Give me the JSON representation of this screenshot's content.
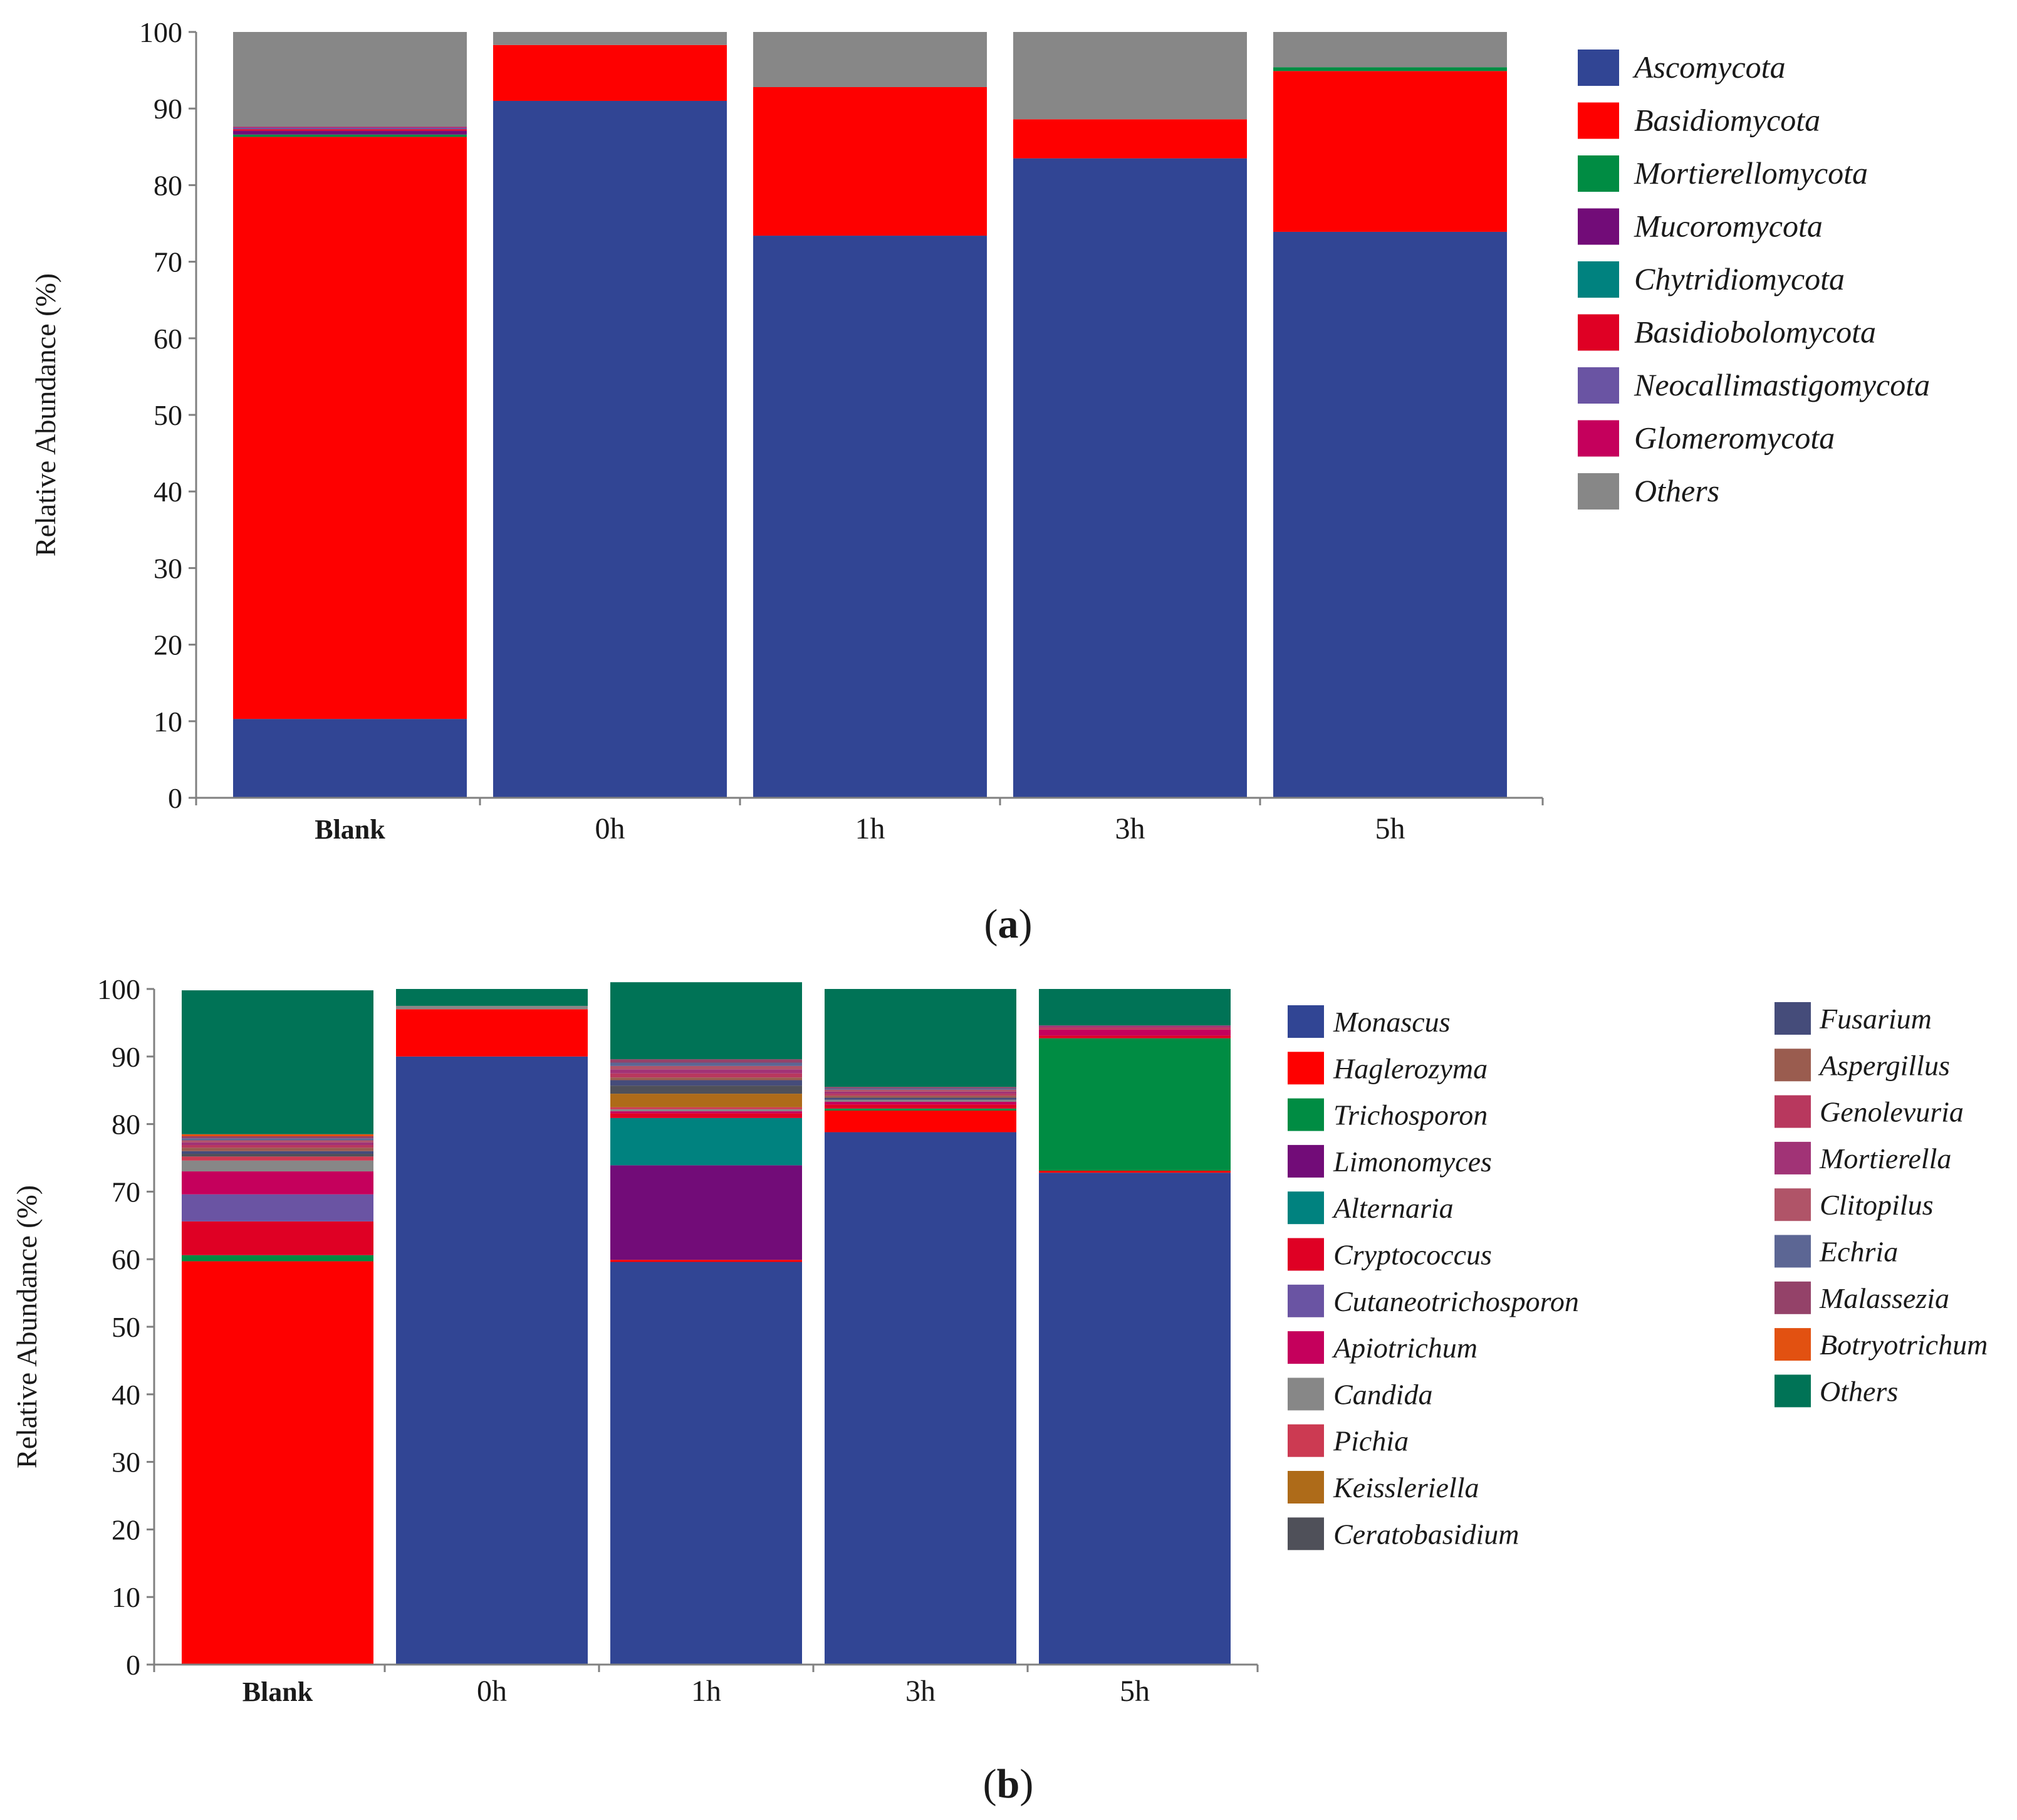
{
  "chart_data": [
    {
      "type": "bar",
      "stacked": true,
      "panel_label": "a",
      "ylabel": "Relative Abundance (%)",
      "xlabel": "",
      "ylim": [
        0,
        100
      ],
      "yticks": [
        0,
        10,
        20,
        30,
        40,
        50,
        60,
        70,
        80,
        90,
        100
      ],
      "categories": [
        "Blank",
        "0h",
        "1h",
        "3h",
        "5h"
      ],
      "legend_position": "right",
      "series": [
        {
          "name": "Ascomycota",
          "color": "#314594",
          "values": [
            10.3,
            91.0,
            73.4,
            83.5,
            73.9
          ]
        },
        {
          "name": "Basidiomycota",
          "color": "#fe0000",
          "values": [
            76.0,
            7.3,
            19.4,
            5.1,
            21.0
          ]
        },
        {
          "name": "Mortierellomycota",
          "color": "#008c43",
          "values": [
            0.3,
            0.0,
            0.0,
            0.0,
            0.5
          ]
        },
        {
          "name": "Mucoromycota",
          "color": "#720c78",
          "values": [
            0.5,
            0.0,
            0.0,
            0.0,
            0.0
          ]
        },
        {
          "name": "Chytridiomycota",
          "color": "#00827f",
          "values": [
            0.0,
            0.0,
            0.0,
            0.0,
            0.0
          ]
        },
        {
          "name": "Basidiobolomycota",
          "color": "#df0024",
          "values": [
            0.2,
            0.0,
            0.0,
            0.0,
            0.0
          ]
        },
        {
          "name": "Neocallimastigomycota",
          "color": "#6a54a3",
          "values": [
            0.2,
            0.0,
            0.0,
            0.0,
            0.0
          ]
        },
        {
          "name": "Glomeromycota",
          "color": "#c5005c",
          "values": [
            0.1,
            0.0,
            0.0,
            0.0,
            0.0
          ]
        },
        {
          "name": "Others",
          "color": "#878787",
          "values": [
            12.4,
            1.7,
            7.2,
            11.4,
            4.6
          ]
        }
      ]
    },
    {
      "type": "bar",
      "stacked": true,
      "panel_label": "b",
      "ylabel": "Relative Abundance (%)",
      "xlabel": "",
      "ylim": [
        0,
        100
      ],
      "yticks": [
        0,
        10,
        20,
        30,
        40,
        50,
        60,
        70,
        80,
        90,
        100
      ],
      "categories": [
        "Blank",
        "0h",
        "1h",
        "3h",
        "5h"
      ],
      "legend_position": "right",
      "series": [
        {
          "name": "Monascus",
          "color": "#314594",
          "values": [
            0.0,
            90.0,
            59.6,
            78.8,
            72.8
          ]
        },
        {
          "name": "Haglerozyma",
          "color": "#fe0000",
          "values": [
            59.7,
            7.0,
            0.3,
            3.2,
            0.3
          ]
        },
        {
          "name": "Trichosporon",
          "color": "#008c43",
          "values": [
            0.9,
            0.0,
            0.0,
            0.3,
            19.6
          ]
        },
        {
          "name": "Limonomyces",
          "color": "#720c78",
          "values": [
            0.0,
            0.0,
            14.0,
            0.0,
            0.0
          ]
        },
        {
          "name": "Alternaria",
          "color": "#00827f",
          "values": [
            0.0,
            0.0,
            7.0,
            0.0,
            0.0
          ]
        },
        {
          "name": "Cryptococcus",
          "color": "#df0024",
          "values": [
            5.0,
            0.0,
            0.7,
            0.6,
            0.4
          ]
        },
        {
          "name": "Cutaneotrichosporon",
          "color": "#6a54a3",
          "values": [
            4.0,
            0.0,
            0.0,
            0.0,
            0.0
          ]
        },
        {
          "name": "Apiotrichum",
          "color": "#c5005c",
          "values": [
            3.4,
            0.0,
            0.3,
            0.4,
            0.9
          ]
        },
        {
          "name": "Candida",
          "color": "#878787",
          "values": [
            1.6,
            0.5,
            0.3,
            0.3,
            0.0
          ]
        },
        {
          "name": "Pichia",
          "color": "#cc3a52",
          "values": [
            0.6,
            0.0,
            0.3,
            0.0,
            0.0
          ]
        },
        {
          "name": "Keissleriella",
          "color": "#ae6b19",
          "values": [
            0.0,
            0.0,
            2.0,
            0.0,
            0.0
          ]
        },
        {
          "name": "Ceratobasidium",
          "color": "#4f5059",
          "values": [
            0.4,
            0.0,
            1.2,
            0.0,
            0.0
          ]
        },
        {
          "name": "Fusarium",
          "color": "#454c7a",
          "values": [
            0.4,
            0.0,
            0.8,
            0.3,
            0.0
          ]
        },
        {
          "name": "Aspergillus",
          "color": "#9a5c4f",
          "values": [
            0.5,
            0.0,
            0.4,
            0.3,
            0.0
          ]
        },
        {
          "name": "Genolevuria",
          "color": "#b8385e",
          "values": [
            0.4,
            0.0,
            0.6,
            0.3,
            0.3
          ]
        },
        {
          "name": "Mortierella",
          "color": "#a13376",
          "values": [
            0.4,
            0.0,
            0.6,
            0.3,
            0.3
          ]
        },
        {
          "name": "Clitopilus",
          "color": "#b05468",
          "values": [
            0.3,
            0.0,
            0.5,
            0.3,
            0.0
          ]
        },
        {
          "name": "Echria",
          "color": "#5c6694",
          "values": [
            0.3,
            0.0,
            0.5,
            0.2,
            0.0
          ]
        },
        {
          "name": "Malassezia",
          "color": "#944269",
          "values": [
            0.3,
            0.0,
            0.5,
            0.2,
            0.0
          ]
        },
        {
          "name": "Botryotrichum",
          "color": "#e25111",
          "values": [
            0.3,
            0.0,
            0.0,
            0.0,
            0.0
          ]
        },
        {
          "name": "Others",
          "color": "#007356",
          "values": [
            21.3,
            2.5,
            11.4,
            14.5,
            5.4
          ]
        }
      ]
    }
  ]
}
